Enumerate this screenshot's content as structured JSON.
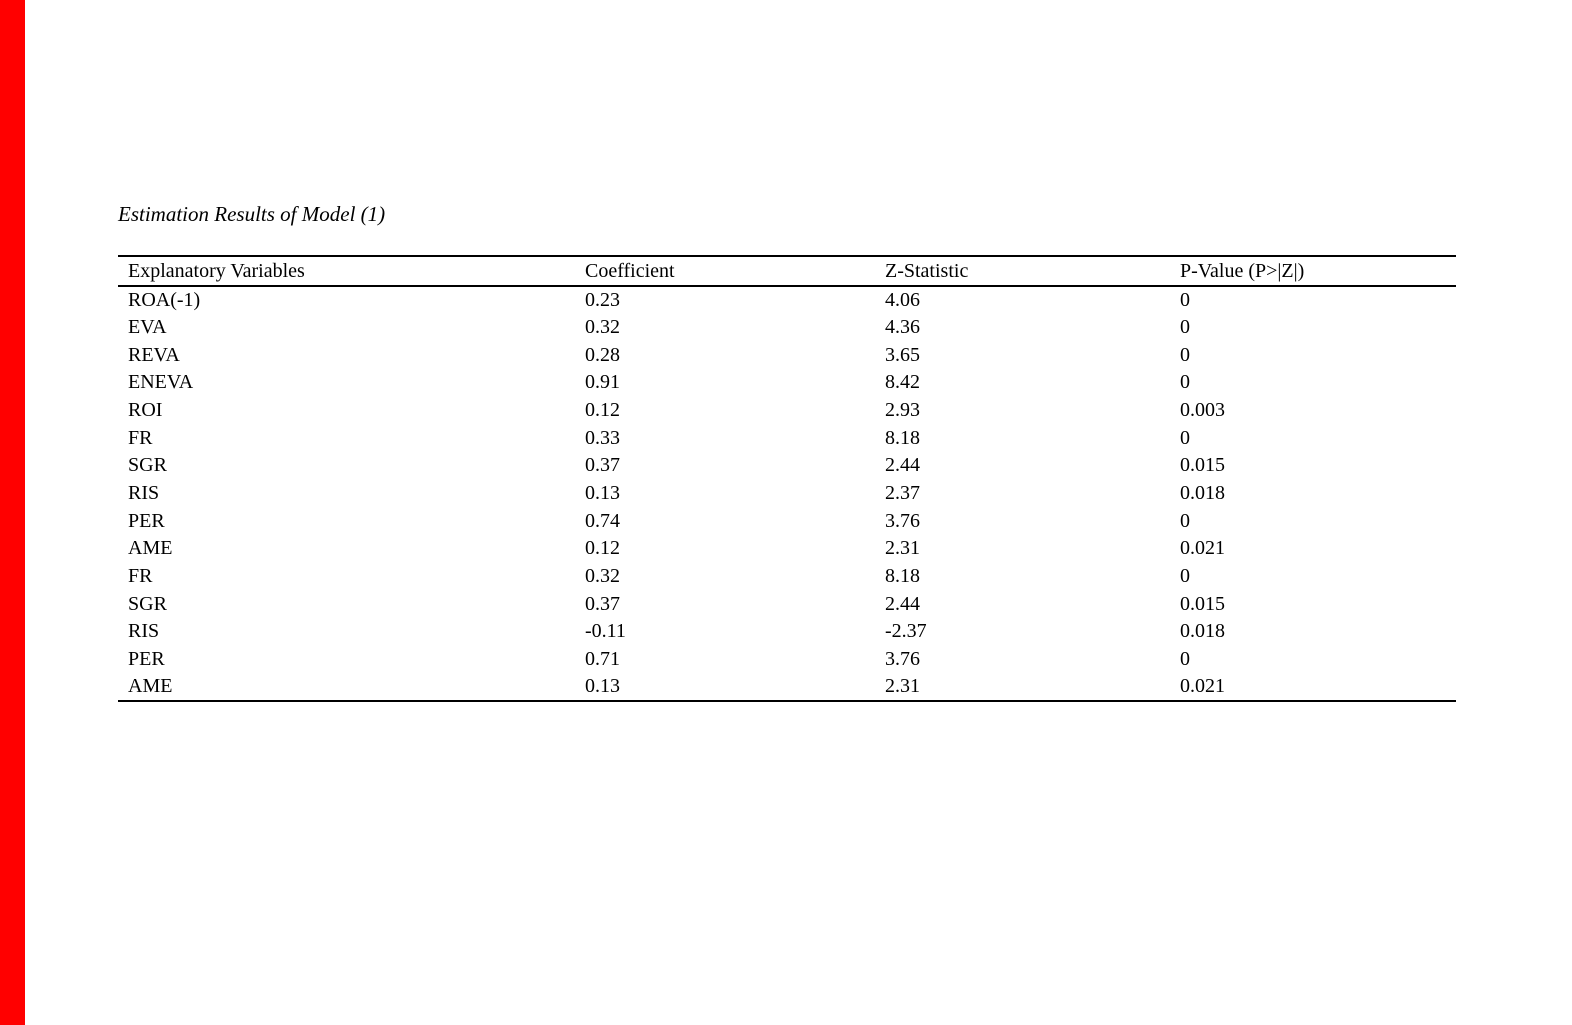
{
  "page": {
    "background_color": "#ffffff",
    "text_color": "#000000",
    "left_bar_color": "#ff0000"
  },
  "table_title": "Estimation Results of Model (1)",
  "table": {
    "columns": [
      "Explanatory Variables",
      "Coefficient",
      "Z-Statistic",
      "P-Value (P>|Z|)"
    ],
    "rows": [
      [
        "ROA(-1)",
        "0.23",
        "4.06",
        "0"
      ],
      [
        "EVA",
        "0.32",
        "4.36",
        "0"
      ],
      [
        "REVA",
        "0.28",
        "3.65",
        "0"
      ],
      [
        "ENEVA",
        "0.91",
        "8.42",
        "0"
      ],
      [
        "ROI",
        "0.12",
        "2.93",
        "0.003"
      ],
      [
        "FR",
        "0.33",
        "8.18",
        "0"
      ],
      [
        "SGR",
        "0.37",
        "2.44",
        "0.015"
      ],
      [
        "RIS",
        "0.13",
        "2.37",
        "0.018"
      ],
      [
        "PER",
        "0.74",
        "3.76",
        "0"
      ],
      [
        "AME",
        "0.12",
        "2.31",
        "0.021"
      ],
      [
        "FR",
        "0.32",
        "8.18",
        "0"
      ],
      [
        "SGR",
        "0.37",
        "2.44",
        "0.015"
      ],
      [
        "RIS",
        "-0.11",
        "-2.37",
        "0.018"
      ],
      [
        "PER",
        "0.71",
        "3.76",
        "0"
      ],
      [
        "AME",
        "0.13",
        "2.31",
        "0.021"
      ]
    ]
  }
}
